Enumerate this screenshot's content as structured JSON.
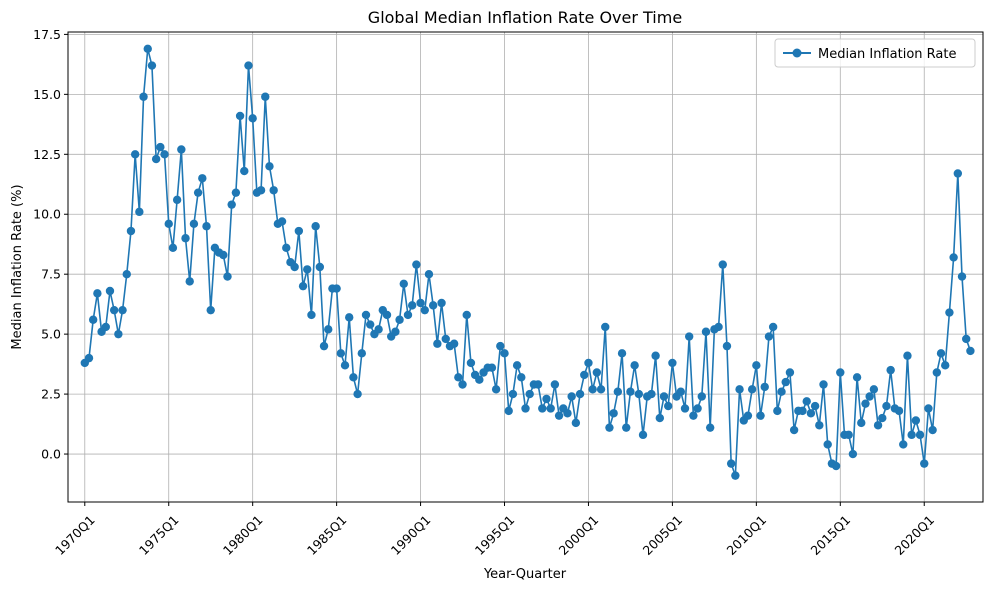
{
  "chart_data": {
    "type": "line",
    "title": "Global Median Inflation Rate Over Time",
    "xlabel": "Year-Quarter",
    "ylabel": "Median Inflation Rate (%)",
    "legend": {
      "position": "top-right",
      "label": "Median Inflation Rate"
    },
    "grid": true,
    "xlim": [
      -4,
      214
    ],
    "ylim": [
      -2.0,
      17.6
    ],
    "x_ticks": [
      {
        "label": "1970Q1",
        "x": 0
      },
      {
        "label": "1975Q1",
        "x": 20
      },
      {
        "label": "1980Q1",
        "x": 40
      },
      {
        "label": "1985Q1",
        "x": 60
      },
      {
        "label": "1990Q1",
        "x": 80
      },
      {
        "label": "1995Q1",
        "x": 100
      },
      {
        "label": "2000Q1",
        "x": 120
      },
      {
        "label": "2005Q1",
        "x": 140
      },
      {
        "label": "2010Q1",
        "x": 160
      },
      {
        "label": "2015Q1",
        "x": 180
      },
      {
        "label": "2020Q1",
        "x": 200
      }
    ],
    "y_ticks": [
      {
        "label": "0.0",
        "v": 0
      },
      {
        "label": "2.5",
        "v": 2.5
      },
      {
        "label": "5.0",
        "v": 5
      },
      {
        "label": "7.5",
        "v": 7.5
      },
      {
        "label": "10.0",
        "v": 10
      },
      {
        "label": "12.5",
        "v": 12.5
      },
      {
        "label": "15.0",
        "v": 15
      },
      {
        "label": "17.5",
        "v": 17.5
      }
    ],
    "series": [
      {
        "name": "Median Inflation Rate",
        "color": "#1f77b4",
        "values": [
          3.8,
          4.0,
          5.6,
          6.7,
          5.1,
          5.3,
          6.8,
          6.0,
          5.0,
          6.0,
          7.5,
          9.3,
          12.5,
          10.1,
          14.9,
          16.9,
          16.2,
          12.3,
          12.8,
          12.5,
          9.6,
          8.6,
          10.6,
          12.7,
          9.0,
          7.2,
          9.6,
          10.9,
          11.5,
          9.5,
          6.0,
          8.6,
          8.4,
          8.3,
          7.4,
          10.4,
          10.9,
          14.1,
          11.8,
          16.2,
          14.0,
          10.9,
          11.0,
          14.9,
          12.0,
          11.0,
          9.6,
          9.7,
          8.6,
          8.0,
          7.8,
          9.3,
          7.0,
          7.7,
          5.8,
          9.5,
          7.8,
          4.5,
          5.2,
          6.9,
          6.9,
          4.2,
          3.7,
          5.7,
          3.2,
          2.5,
          4.2,
          5.8,
          5.4,
          5.0,
          5.2,
          6.0,
          5.8,
          4.9,
          5.1,
          5.6,
          7.1,
          5.8,
          6.2,
          7.9,
          6.3,
          6.0,
          7.5,
          6.2,
          4.6,
          6.3,
          4.8,
          4.5,
          4.6,
          3.2,
          2.9,
          5.8,
          3.8,
          3.3,
          3.1,
          3.4,
          3.6,
          3.6,
          2.7,
          4.5,
          4.2,
          1.8,
          2.5,
          3.7,
          3.2,
          1.9,
          2.5,
          2.9,
          2.9,
          1.9,
          2.3,
          1.9,
          2.9,
          1.6,
          1.9,
          1.7,
          2.4,
          1.3,
          2.5,
          3.3,
          3.8,
          2.7,
          3.4,
          2.7,
          5.3,
          1.1,
          1.7,
          2.6,
          4.2,
          1.1,
          2.6,
          3.7,
          2.5,
          0.8,
          2.4,
          2.5,
          4.1,
          1.5,
          2.4,
          2.0,
          3.8,
          2.4,
          2.6,
          1.9,
          4.9,
          1.6,
          1.9,
          2.4,
          5.1,
          1.1,
          5.2,
          5.3,
          7.9,
          4.5,
          -0.4,
          -0.9,
          2.7,
          1.4,
          1.6,
          2.7,
          3.7,
          1.6,
          2.8,
          4.9,
          5.3,
          1.8,
          2.6,
          3.0,
          3.4,
          1.0,
          1.8,
          1.8,
          2.2,
          1.7,
          2.0,
          1.2,
          2.9,
          0.4,
          -0.4,
          -0.5,
          3.4,
          0.8,
          0.8,
          0.0,
          3.2,
          1.3,
          2.1,
          2.4,
          2.7,
          1.2,
          1.5,
          2.0,
          3.5,
          1.9,
          1.8,
          0.4,
          4.1,
          0.8,
          1.4,
          0.8,
          -0.4,
          1.9,
          1.0,
          3.4,
          4.2,
          3.7,
          5.9,
          8.2,
          11.7,
          7.4,
          4.8,
          4.3
        ]
      }
    ]
  }
}
